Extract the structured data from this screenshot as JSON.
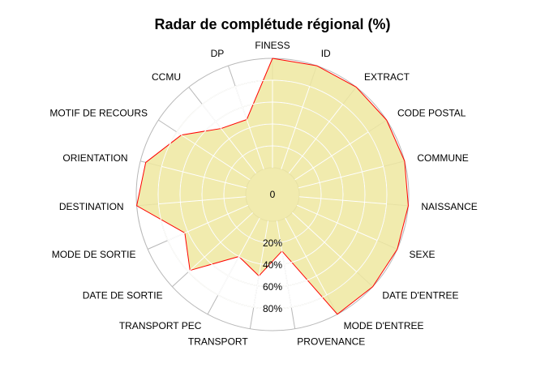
{
  "chart_data": {
    "type": "radar",
    "title": "Radar de complétude régional (%)",
    "categories": [
      "FINESS",
      "ID",
      "EXTRACT",
      "CODE POSTAL",
      "COMMUNE",
      "NAISSANCE",
      "SEXE",
      "DATE D'ENTREE",
      "MODE D'ENTREE",
      "PROVENANCE",
      "TRANSPORT",
      "TRANSPORT PEC",
      "DATE DE SORTIE",
      "MODE DE SORTIE",
      "DESTINATION",
      "ORIENTATION",
      "MOTIF DE RECOURS",
      "CCMU",
      "DP"
    ],
    "values": [
      100,
      100,
      100,
      100,
      100,
      100,
      100,
      100,
      100,
      28,
      51,
      40,
      78,
      63,
      100,
      95,
      75,
      52,
      48
    ],
    "rlim": [
      0,
      100
    ],
    "r_ticks": [
      {
        "value": 0,
        "label": "0"
      },
      {
        "value": 20,
        "label": "20%"
      },
      {
        "value": 40,
        "label": "40%"
      },
      {
        "value": 60,
        "label": "60%"
      },
      {
        "value": 80,
        "label": "80%"
      }
    ],
    "grid": true,
    "colors": {
      "fill": "#eee8a0",
      "stroke": "#ff0000",
      "grid_outer": "#b8b8b8",
      "grid_inner": "#ffffff"
    }
  }
}
